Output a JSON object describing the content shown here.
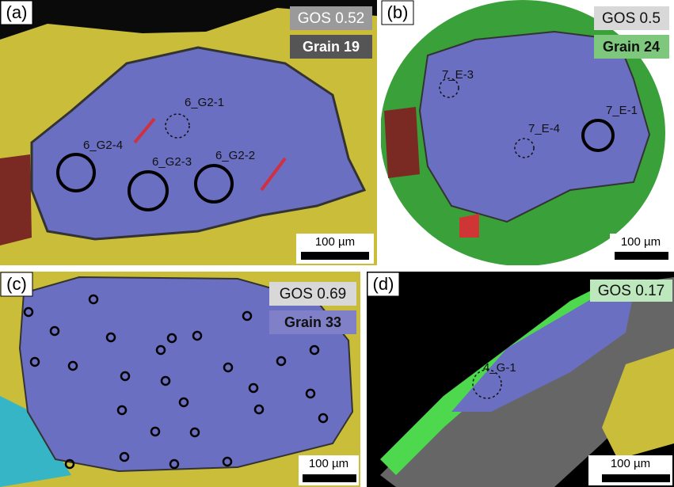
{
  "panels": [
    {
      "label": "(a)",
      "gos": "GOS 0.52",
      "grain": "Grain 19",
      "scale_bar": "100 µm",
      "spots": [
        "6_G2-1",
        "6_G2-4",
        "6_G2-3",
        "6_G2-2"
      ]
    },
    {
      "label": "(b)",
      "gos": "GOS 0.5",
      "grain": "Grain 24",
      "scale_bar": "100 µm",
      "spots": [
        "7_E-3",
        "7_E-1",
        "7_E-4"
      ]
    },
    {
      "label": "(c)",
      "gos": "GOS 0.69",
      "grain": "Grain 33",
      "scale_bar": "100 µm"
    },
    {
      "label": "(d)",
      "gos": "GOS 0.17",
      "scale_bar": "100 µm",
      "spots": [
        "4_G-1"
      ]
    }
  ]
}
